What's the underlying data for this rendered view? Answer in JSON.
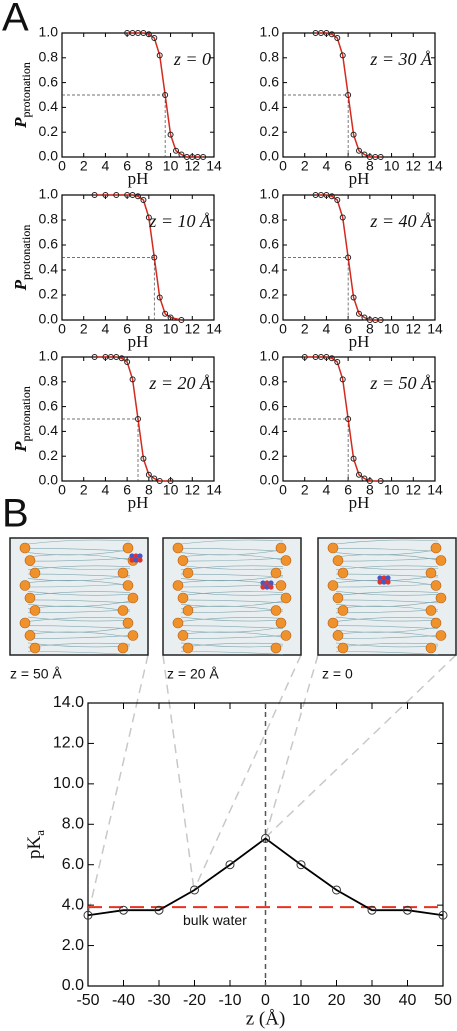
{
  "panels": [
    "A",
    "B"
  ],
  "images": [
    {
      "caption": "z = 50 Å"
    },
    {
      "caption": "z = 20 Å"
    },
    {
      "caption": "z = 0"
    }
  ],
  "chart_data": [
    {
      "type": "line",
      "annotation": "z = 0",
      "color": "#d42a1e",
      "x_label": "pH",
      "y_label": "P",
      "y_label_subscript": "protonation",
      "x": [
        6,
        6.5,
        7,
        7.5,
        8,
        8.5,
        9,
        9.5,
        10,
        10.5,
        11,
        11.5,
        12,
        12.5,
        13
      ],
      "values": [
        1,
        1,
        1,
        1,
        0.99,
        0.96,
        0.82,
        0.5,
        0.18,
        0.05,
        0.02,
        0,
        0,
        0,
        0
      ],
      "reference_x": 9.5,
      "reference_y": 0.5,
      "xlim": [
        0,
        14
      ],
      "ylim": [
        0,
        1
      ],
      "xticks": [
        0,
        2,
        4,
        6,
        8,
        10,
        12,
        14
      ],
      "yticks": [
        {
          "value": 0,
          "label": "0.0"
        },
        {
          "value": 0.2,
          "label": "0.2"
        },
        {
          "value": 0.4,
          "label": "0.4"
        },
        {
          "value": 0.6,
          "label": "0.6"
        },
        {
          "value": 0.8,
          "label": "0.8"
        },
        {
          "value": 1,
          "label": "1.0"
        }
      ]
    },
    {
      "type": "line",
      "annotation": "z = 30 Å",
      "color": "#d42a1e",
      "x_label": "pH",
      "y_label": "P",
      "y_label_subscript": "protonation",
      "x": [
        3,
        3.5,
        4,
        4.5,
        5,
        5.5,
        6,
        6.5,
        7,
        7.5,
        8,
        8.5,
        9
      ],
      "values": [
        1,
        1,
        1,
        0.99,
        0.96,
        0.82,
        0.5,
        0.18,
        0.05,
        0.02,
        0,
        0,
        0
      ],
      "reference_x": 6,
      "reference_y": 0.5,
      "xlim": [
        0,
        14
      ],
      "ylim": [
        0,
        1
      ],
      "xticks": [
        0,
        2,
        4,
        6,
        8,
        10,
        12,
        14
      ],
      "yticks": [
        {
          "value": 0,
          "label": "0.0"
        },
        {
          "value": 0.2,
          "label": "0.2"
        },
        {
          "value": 0.4,
          "label": "0.4"
        },
        {
          "value": 0.6,
          "label": "0.6"
        },
        {
          "value": 0.8,
          "label": "0.8"
        },
        {
          "value": 1,
          "label": "1.0"
        }
      ]
    },
    {
      "type": "line",
      "annotation": "z = 10 Å",
      "color": "#d42a1e",
      "x_label": "pH",
      "y_label": "P",
      "y_label_subscript": "protonation",
      "x": [
        3,
        4,
        5,
        6,
        6.5,
        7,
        7.5,
        8,
        8.5,
        9,
        9.5,
        10,
        11
      ],
      "values": [
        1,
        1,
        1,
        1,
        1,
        0.99,
        0.96,
        0.82,
        0.5,
        0.18,
        0.05,
        0.02,
        0
      ],
      "reference_x": 8.5,
      "reference_y": 0.5,
      "xlim": [
        0,
        14
      ],
      "ylim": [
        0,
        1
      ],
      "xticks": [
        0,
        2,
        4,
        6,
        8,
        10,
        12,
        14
      ],
      "yticks": [
        {
          "value": 0,
          "label": "0.0"
        },
        {
          "value": 0.2,
          "label": "0.2"
        },
        {
          "value": 0.4,
          "label": "0.4"
        },
        {
          "value": 0.6,
          "label": "0.6"
        },
        {
          "value": 0.8,
          "label": "0.8"
        },
        {
          "value": 1,
          "label": "1.0"
        }
      ]
    },
    {
      "type": "line",
      "annotation": "z = 40 Å",
      "color": "#d42a1e",
      "x_label": "pH",
      "y_label": "P",
      "y_label_subscript": "protonation",
      "x": [
        3,
        3.5,
        4,
        4.5,
        5,
        5.5,
        6,
        6.5,
        7,
        7.5,
        8,
        8.5,
        9
      ],
      "values": [
        1,
        1,
        1,
        0.99,
        0.96,
        0.82,
        0.5,
        0.18,
        0.05,
        0.02,
        0,
        0,
        0
      ],
      "reference_x": 6,
      "reference_y": 0.5,
      "xlim": [
        0,
        14
      ],
      "ylim": [
        0,
        1
      ],
      "xticks": [
        0,
        2,
        4,
        6,
        8,
        10,
        12,
        14
      ],
      "yticks": [
        {
          "value": 0,
          "label": "0.0"
        },
        {
          "value": 0.2,
          "label": "0.2"
        },
        {
          "value": 0.4,
          "label": "0.4"
        },
        {
          "value": 0.6,
          "label": "0.6"
        },
        {
          "value": 0.8,
          "label": "0.8"
        },
        {
          "value": 1,
          "label": "1.0"
        }
      ]
    },
    {
      "type": "line",
      "annotation": "z = 20 Å",
      "color": "#d42a1e",
      "x_label": "pH",
      "y_label": "P",
      "y_label_subscript": "protonation",
      "x": [
        3,
        4,
        4.5,
        5,
        5.5,
        6,
        6.5,
        7,
        7.5,
        8,
        8.5,
        9,
        10
      ],
      "values": [
        1,
        1,
        1,
        1,
        0.99,
        0.96,
        0.82,
        0.5,
        0.18,
        0.05,
        0.02,
        0,
        0
      ],
      "reference_x": 7,
      "reference_y": 0.5,
      "xlim": [
        0,
        14
      ],
      "ylim": [
        0,
        1
      ],
      "xticks": [
        0,
        2,
        4,
        6,
        8,
        10,
        12,
        14
      ],
      "yticks": [
        {
          "value": 0,
          "label": "0.0"
        },
        {
          "value": 0.2,
          "label": "0.2"
        },
        {
          "value": 0.4,
          "label": "0.4"
        },
        {
          "value": 0.6,
          "label": "0.6"
        },
        {
          "value": 0.8,
          "label": "0.8"
        },
        {
          "value": 1,
          "label": "1.0"
        }
      ]
    },
    {
      "type": "line",
      "annotation": "z = 50 Å",
      "color": "#d42a1e",
      "x_label": "pH",
      "y_label": "P",
      "y_label_subscript": "protonation",
      "x": [
        2,
        3,
        3.5,
        4,
        4.5,
        5,
        5.5,
        6,
        6.5,
        7,
        7.5,
        8,
        9
      ],
      "values": [
        1,
        1,
        1,
        1,
        0.99,
        0.96,
        0.82,
        0.5,
        0.18,
        0.05,
        0.02,
        0,
        0
      ],
      "reference_x": 6,
      "reference_y": 0.5,
      "xlim": [
        0,
        14
      ],
      "ylim": [
        0,
        1
      ],
      "xticks": [
        0,
        2,
        4,
        6,
        8,
        10,
        12,
        14
      ],
      "yticks": [
        {
          "value": 0,
          "label": "0.0"
        },
        {
          "value": 0.2,
          "label": "0.2"
        },
        {
          "value": 0.4,
          "label": "0.4"
        },
        {
          "value": 0.6,
          "label": "0.6"
        },
        {
          "value": 0.8,
          "label": "0.8"
        },
        {
          "value": 1,
          "label": "1.0"
        }
      ]
    },
    {
      "type": "line",
      "color": "#000000",
      "x_label": "z (Å)",
      "y_label": "pK",
      "y_label_subscript": "a",
      "x": [
        -50,
        -40,
        -30,
        -20,
        -10,
        0,
        10,
        20,
        30,
        40,
        50
      ],
      "values": [
        3.5,
        3.75,
        3.75,
        4.75,
        6.0,
        7.3,
        6.0,
        4.75,
        3.75,
        3.75,
        3.5
      ],
      "reference_line": {
        "value": 3.9,
        "label": "bulk water",
        "color": "#e8321e"
      },
      "reference_x": 0,
      "xlim": [
        -50,
        50
      ],
      "ylim": [
        0,
        14
      ],
      "xticks": [
        -50,
        -40,
        -30,
        -20,
        -10,
        0,
        10,
        20,
        30,
        40,
        50
      ],
      "yticks": [
        {
          "value": 0,
          "label": "0.0"
        },
        {
          "value": 2,
          "label": "2.0"
        },
        {
          "value": 4,
          "label": "4.0"
        },
        {
          "value": 6,
          "label": "6.0"
        },
        {
          "value": 8,
          "label": "8.0"
        },
        {
          "value": 10,
          "label": "10.0"
        },
        {
          "value": 12,
          "label": "12.0"
        },
        {
          "value": 14,
          "label": "14.0"
        }
      ]
    }
  ]
}
